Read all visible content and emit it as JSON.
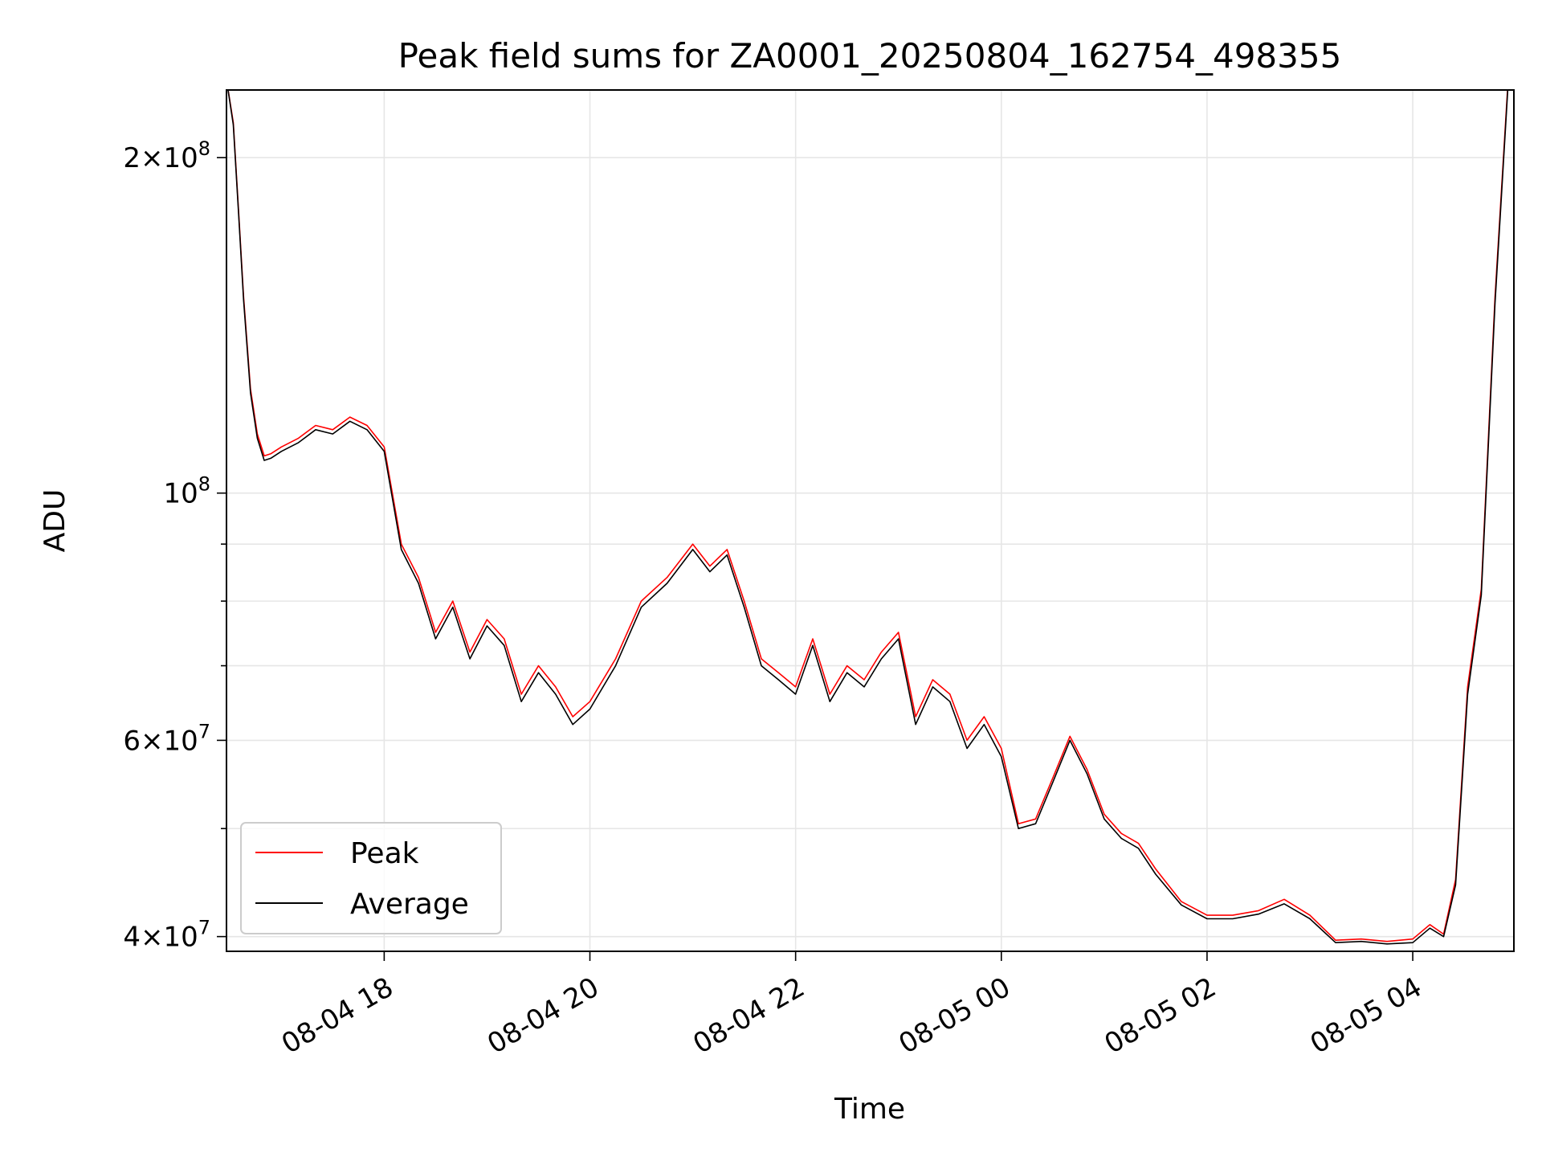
{
  "chart_data": {
    "type": "line",
    "title": "Peak field sums for ZA0001_20250804_162754_498355",
    "xlabel": "Time",
    "ylabel": "ADU",
    "yscale": "log",
    "grid": true,
    "legend_position": "lower-left",
    "xlim": [
      "2025-08-04 16:28",
      "2025-08-05 04:59"
    ],
    "ylim": [
      38800000,
      230000000
    ],
    "x_ticks": [
      {
        "x": "2025-08-04 18:00",
        "label": "08-04 18"
      },
      {
        "x": "2025-08-04 20:00",
        "label": "08-04 20"
      },
      {
        "x": "2025-08-04 22:00",
        "label": "08-04 22"
      },
      {
        "x": "2025-08-05 00:00",
        "label": "08-05 00"
      },
      {
        "x": "2025-08-05 02:00",
        "label": "08-05 02"
      },
      {
        "x": "2025-08-05 04:00",
        "label": "08-05 04"
      }
    ],
    "y_ticks": [
      {
        "value": 200000000,
        "mant": "2",
        "exp": "8"
      },
      {
        "value": 100000000,
        "mant": "",
        "exp": "8"
      },
      {
        "value": 60000000,
        "mant": "6",
        "exp": "7"
      },
      {
        "value": 40000000,
        "mant": "4",
        "exp": "7"
      }
    ],
    "y_minor_ticks": [
      50000000,
      70000000,
      80000000,
      90000000
    ],
    "x": [
      "2025-08-04 16:28",
      "2025-08-04 16:32",
      "2025-08-04 16:35",
      "2025-08-04 16:38",
      "2025-08-04 16:42",
      "2025-08-04 16:46",
      "2025-08-04 16:50",
      "2025-08-04 16:54",
      "2025-08-04 17:00",
      "2025-08-04 17:10",
      "2025-08-04 17:20",
      "2025-08-04 17:30",
      "2025-08-04 17:40",
      "2025-08-04 17:50",
      "2025-08-04 18:00",
      "2025-08-04 18:10",
      "2025-08-04 18:20",
      "2025-08-04 18:30",
      "2025-08-04 18:40",
      "2025-08-04 18:50",
      "2025-08-04 19:00",
      "2025-08-04 19:10",
      "2025-08-04 19:20",
      "2025-08-04 19:30",
      "2025-08-04 19:40",
      "2025-08-04 19:50",
      "2025-08-04 20:00",
      "2025-08-04 20:15",
      "2025-08-04 20:30",
      "2025-08-04 20:45",
      "2025-08-04 21:00",
      "2025-08-04 21:10",
      "2025-08-04 21:20",
      "2025-08-04 21:30",
      "2025-08-04 21:40",
      "2025-08-04 21:50",
      "2025-08-04 22:00",
      "2025-08-04 22:10",
      "2025-08-04 22:20",
      "2025-08-04 22:30",
      "2025-08-04 22:40",
      "2025-08-04 22:50",
      "2025-08-04 23:00",
      "2025-08-04 23:10",
      "2025-08-04 23:20",
      "2025-08-04 23:30",
      "2025-08-04 23:40",
      "2025-08-04 23:50",
      "2025-08-05 00:00",
      "2025-08-05 00:10",
      "2025-08-05 00:20",
      "2025-08-05 00:30",
      "2025-08-05 00:40",
      "2025-08-05 00:50",
      "2025-08-05 01:00",
      "2025-08-05 01:10",
      "2025-08-05 01:20",
      "2025-08-05 01:30",
      "2025-08-05 01:45",
      "2025-08-05 02:00",
      "2025-08-05 02:15",
      "2025-08-05 02:30",
      "2025-08-05 02:45",
      "2025-08-05 03:00",
      "2025-08-05 03:15",
      "2025-08-05 03:30",
      "2025-08-05 03:45",
      "2025-08-05 04:00",
      "2025-08-05 04:10",
      "2025-08-05 04:18",
      "2025-08-05 04:25",
      "2025-08-05 04:32",
      "2025-08-05 04:40",
      "2025-08-05 04:48",
      "2025-08-05 04:56"
    ],
    "series": [
      {
        "name": "Peak",
        "color": "#ff0000",
        "values": [
          235000000,
          215000000,
          180000000,
          150000000,
          124000000,
          113000000,
          108000000,
          108500000,
          110000000,
          112000000,
          115000000,
          114000000,
          117000000,
          115000000,
          110000000,
          90000000,
          84000000,
          75000000,
          80000000,
          72000000,
          77000000,
          74000000,
          66000000,
          70000000,
          67000000,
          63000000,
          65000000,
          71000000,
          80000000,
          84000000,
          90000000,
          86000000,
          89000000,
          80000000,
          71000000,
          69000000,
          67000000,
          74000000,
          66000000,
          70000000,
          68000000,
          72000000,
          75000000,
          63000000,
          68000000,
          66000000,
          60000000,
          63000000,
          59000000,
          50500000,
          51000000,
          55500000,
          60500000,
          56500000,
          51500000,
          49500000,
          48500000,
          46000000,
          43000000,
          41800000,
          41800000,
          42200000,
          43200000,
          41800000,
          39700000,
          39800000,
          39600000,
          39800000,
          41000000,
          40200000,
          45000000,
          67000000,
          82000000,
          150000000,
          240000000
        ]
      },
      {
        "name": "Average",
        "color": "#000000",
        "values": [
          235000000,
          214000000,
          179000000,
          149000000,
          123000000,
          112000000,
          107000000,
          107500000,
          109000000,
          111000000,
          114000000,
          113000000,
          116000000,
          114000000,
          109000000,
          89000000,
          83000000,
          74000000,
          79000000,
          71000000,
          76000000,
          73000000,
          65000000,
          69000000,
          66000000,
          62000000,
          64000000,
          70000000,
          79000000,
          83000000,
          89000000,
          85000000,
          88000000,
          79000000,
          70000000,
          68000000,
          66000000,
          73000000,
          65000000,
          69000000,
          67000000,
          71000000,
          74000000,
          62000000,
          67000000,
          65000000,
          59000000,
          62000000,
          58000000,
          50000000,
          50500000,
          55000000,
          60000000,
          56000000,
          51000000,
          49000000,
          48000000,
          45500000,
          42700000,
          41500000,
          41500000,
          41900000,
          42800000,
          41500000,
          39500000,
          39600000,
          39400000,
          39500000,
          40700000,
          40000000,
          44500000,
          66000000,
          81000000,
          148000000,
          238000000
        ]
      }
    ]
  }
}
